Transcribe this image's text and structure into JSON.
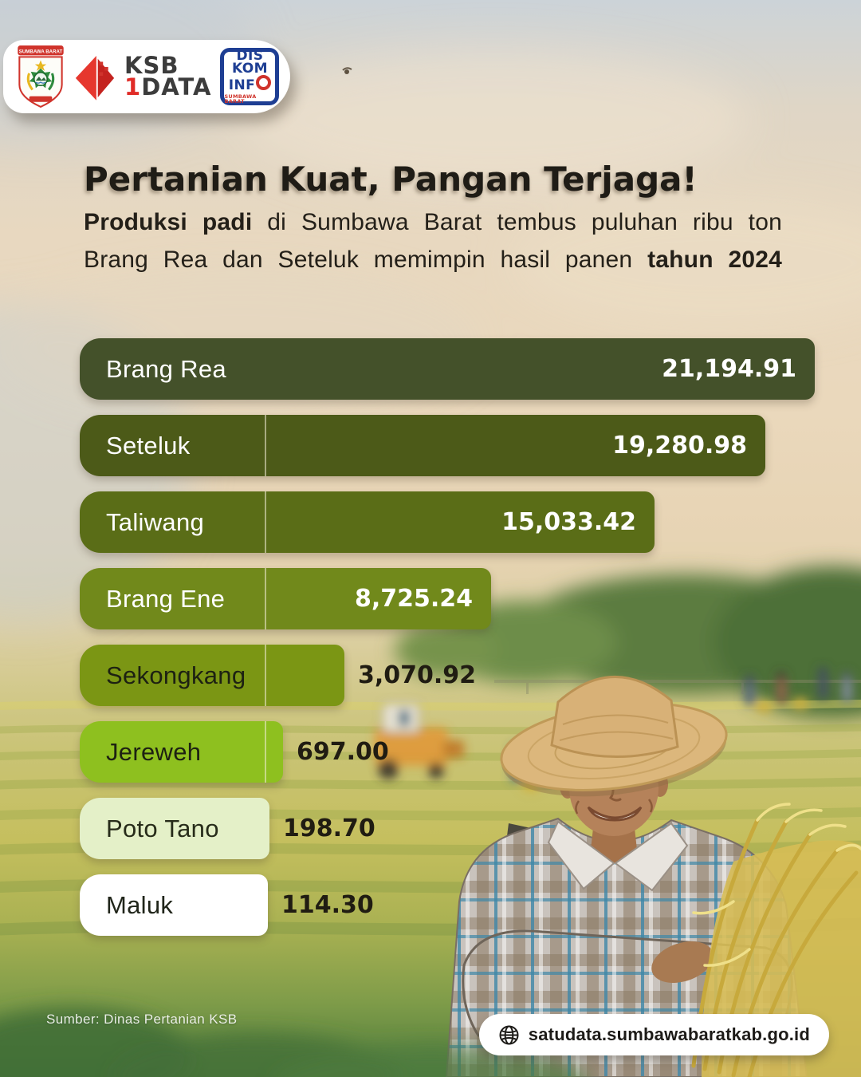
{
  "header": {
    "crest_banner": "SUMBAWA BARAT",
    "ksb1data": {
      "ksb": "KSB",
      "one": "1",
      "data": "DATA"
    },
    "diskominfo": {
      "line1": "DIS",
      "line2": "KOM",
      "line3": "INF",
      "sub": "SUMBAWA BARAT"
    }
  },
  "headline": {
    "title": "Pertanian Kuat, Pangan Terjaga!",
    "subtitle_line1_bold": "Produksi padi",
    "subtitle_line1_rest": " di Sumbawa Barat tembus puluhan ribu ton",
    "subtitle_line2_rest": "Brang Rea dan Seteluk memimpin hasil panen ",
    "subtitle_line2_bold": "tahun 2024"
  },
  "chart_data": {
    "type": "bar",
    "orientation": "horizontal",
    "categories": [
      "Brang Rea",
      "Seteluk",
      "Taliwang",
      "Brang Ene",
      "Sekongkang",
      "Jereweh",
      "Poto Tano",
      "Maluk"
    ],
    "values": [
      21194.91,
      19280.98,
      15033.42,
      8725.24,
      3070.92,
      697.0,
      198.7,
      114.3
    ],
    "value_labels": [
      "21,194.91",
      "19,280.98",
      "15,033.42",
      "8,725.24",
      "3,070.92",
      "697.00",
      "198.70",
      "114.30"
    ],
    "bar_colors": [
      "#44512a",
      "#4c5a18",
      "#5a6d17",
      "#71891b",
      "#7b9614",
      "#8ec01f",
      "#e4f0c8",
      "#ffffff"
    ],
    "label_text_colors": [
      "#ffffff",
      "#ffffff",
      "#ffffff",
      "#ffffff",
      "#1d2112",
      "#1d2112",
      "#272c1a",
      "#20251a"
    ],
    "value_text_colors": [
      "#ffffff",
      "#ffffff",
      "#ffffff",
      "#ffffff",
      "#201c12",
      "#201c12",
      "#201c12",
      "#201c12"
    ],
    "value_placement": [
      "inside",
      "inside",
      "inside",
      "inside",
      "outside",
      "outside",
      "outside",
      "outside"
    ],
    "label_divider_rows": [
      1,
      2,
      3,
      4,
      5
    ],
    "xlim": [
      0,
      21194.91
    ],
    "legend": "none",
    "grid": "off"
  },
  "source": {
    "label": "Sumber: Dinas Pertanian KSB"
  },
  "footer": {
    "url": "satudata.sumbawabaratkab.go.id"
  },
  "colors": {
    "bar_darkest": "#44512a",
    "bar_brightest": "#8ec01f",
    "title_text": "#1f1c16",
    "diskominfo_blue": "#1e3e93",
    "logo_red": "#d0342c"
  }
}
